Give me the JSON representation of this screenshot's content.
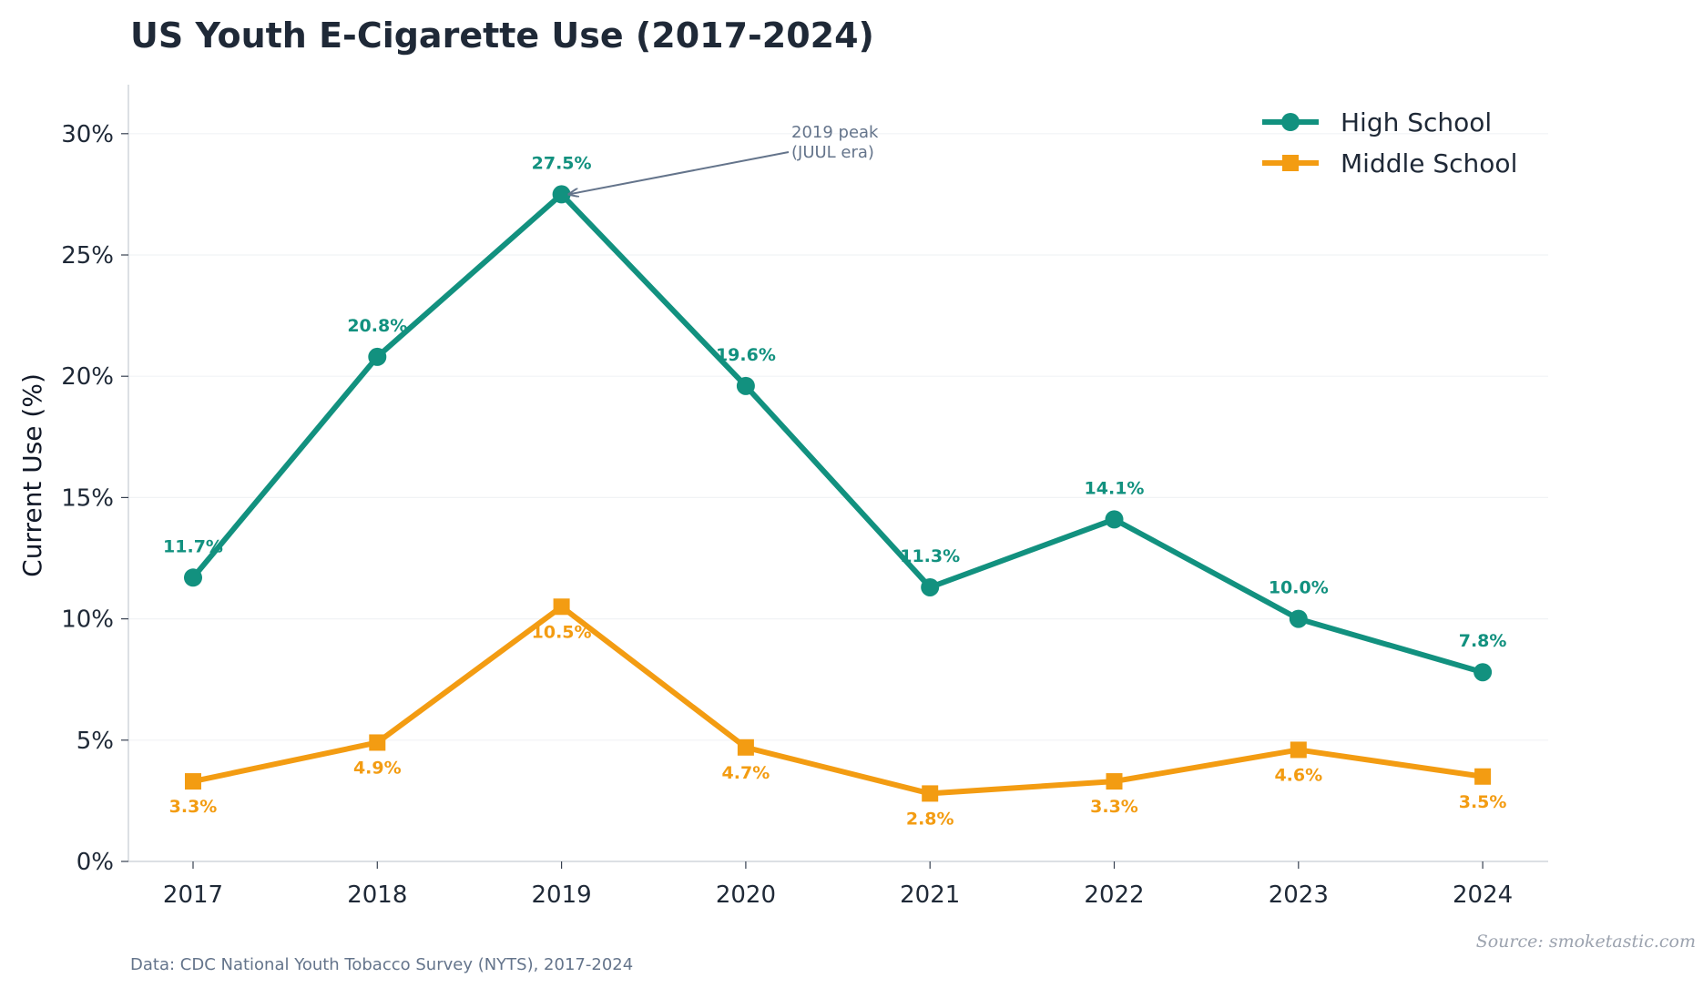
{
  "chart_data": {
    "type": "line",
    "title": "US Youth E-Cigarette Use (2017-2024)",
    "ylabel": "Current Use (%)",
    "xlabel": "",
    "categories": [
      "2017",
      "2018",
      "2019",
      "2020",
      "2021",
      "2022",
      "2023",
      "2024"
    ],
    "ylim": [
      0,
      32
    ],
    "yticks": [
      0,
      5,
      10,
      15,
      20,
      25,
      30
    ],
    "ytick_labels": [
      "0%",
      "5%",
      "10%",
      "15%",
      "20%",
      "25%",
      "30%"
    ],
    "grid": "horizontal, light",
    "legend_position": "top-right",
    "series": [
      {
        "name": "High School",
        "color": "#12917f",
        "marker": "circle",
        "values": [
          11.7,
          20.8,
          27.5,
          19.6,
          11.3,
          14.1,
          10.0,
          7.8
        ],
        "labels": [
          "11.7%",
          "20.8%",
          "27.5%",
          "19.6%",
          "11.3%",
          "14.1%",
          "10.0%",
          "7.8%"
        ]
      },
      {
        "name": "Middle School",
        "color": "#f39c12",
        "marker": "square",
        "values": [
          3.3,
          4.9,
          10.5,
          4.7,
          2.8,
          3.3,
          4.6,
          3.5
        ],
        "labels": [
          "3.3%",
          "4.9%",
          "10.5%",
          "4.7%",
          "2.8%",
          "3.3%",
          "4.6%",
          "3.5%"
        ]
      }
    ],
    "annotation": {
      "lines": [
        "2019 peak",
        "(JUUL era)"
      ],
      "target_category": "2019",
      "target_value": 27.5
    }
  },
  "footnote": "Data: CDC National Youth Tobacco Survey (NYTS), 2017-2024",
  "source": "Source: smoketastic.com"
}
